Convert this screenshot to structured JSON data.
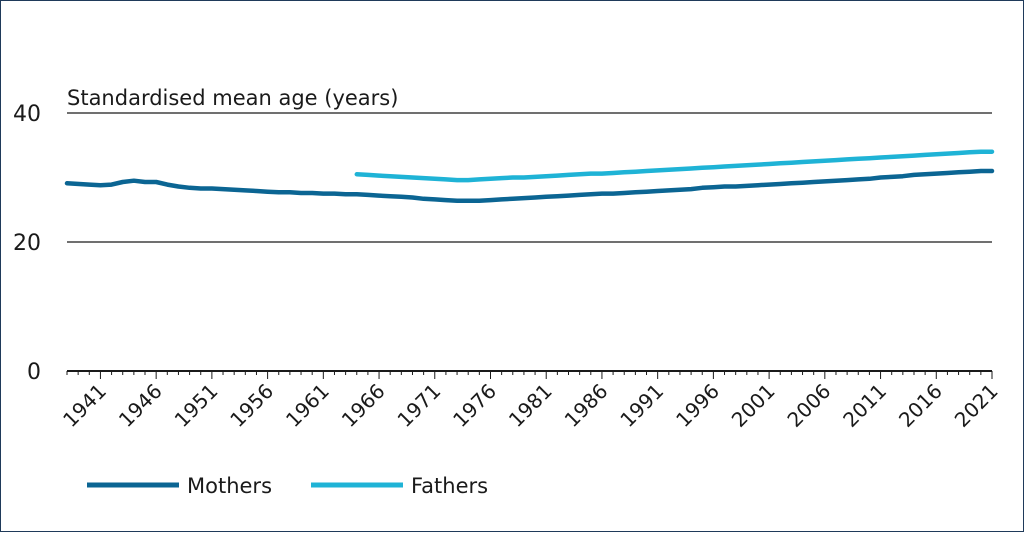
{
  "chart_data": {
    "type": "line",
    "title": "",
    "ylabel": "Standardised mean age (years)",
    "xlabel": "",
    "ylim": [
      0,
      40
    ],
    "xlim": [
      1938,
      2021
    ],
    "yticks": [
      0,
      20,
      40
    ],
    "xticks": [
      1941,
      1946,
      1951,
      1956,
      1961,
      1966,
      1971,
      1976,
      1981,
      1986,
      1991,
      1996,
      2001,
      2006,
      2011,
      2016,
      2021
    ],
    "grid": "horizontal at y ticks",
    "legend": "bottom-left",
    "series": [
      {
        "name": "Mothers",
        "color": "#0b6593",
        "x": [
          1938,
          1940,
          1941,
          1942,
          1943,
          1944,
          1945,
          1946,
          1947,
          1948,
          1949,
          1950,
          1951,
          1952,
          1953,
          1954,
          1955,
          1956,
          1957,
          1958,
          1959,
          1960,
          1961,
          1962,
          1963,
          1964,
          1965,
          1966,
          1967,
          1968,
          1969,
          1970,
          1971,
          1972,
          1973,
          1974,
          1975,
          1976,
          1977,
          1978,
          1979,
          1980,
          1981,
          1982,
          1983,
          1984,
          1985,
          1986,
          1987,
          1988,
          1989,
          1990,
          1991,
          1992,
          1993,
          1994,
          1995,
          1996,
          1997,
          1998,
          1999,
          2000,
          2001,
          2002,
          2003,
          2004,
          2005,
          2006,
          2007,
          2008,
          2009,
          2010,
          2011,
          2012,
          2013,
          2014,
          2015,
          2016,
          2017,
          2018,
          2019,
          2020,
          2021
        ],
        "y": [
          29.1,
          28.9,
          28.8,
          28.9,
          29.3,
          29.5,
          29.3,
          29.3,
          28.9,
          28.6,
          28.4,
          28.3,
          28.3,
          28.2,
          28.1,
          28.0,
          27.9,
          27.8,
          27.7,
          27.7,
          27.6,
          27.6,
          27.5,
          27.5,
          27.4,
          27.4,
          27.3,
          27.2,
          27.1,
          27.0,
          26.9,
          26.7,
          26.6,
          26.5,
          26.4,
          26.4,
          26.4,
          26.5,
          26.6,
          26.7,
          26.8,
          26.9,
          27.0,
          27.1,
          27.2,
          27.3,
          27.4,
          27.5,
          27.5,
          27.6,
          27.7,
          27.8,
          27.9,
          28.0,
          28.1,
          28.2,
          28.4,
          28.5,
          28.6,
          28.6,
          28.7,
          28.8,
          28.9,
          29.0,
          29.1,
          29.2,
          29.3,
          29.4,
          29.5,
          29.6,
          29.7,
          29.8,
          30.0,
          30.1,
          30.2,
          30.4,
          30.5,
          30.6,
          30.7,
          30.8,
          30.9,
          31.0,
          31.0
        ]
      },
      {
        "name": "Fathers",
        "color": "#1fb3d6",
        "x": [
          1964,
          1965,
          1966,
          1967,
          1968,
          1969,
          1970,
          1971,
          1972,
          1973,
          1974,
          1975,
          1976,
          1977,
          1978,
          1979,
          1980,
          1981,
          1982,
          1983,
          1984,
          1985,
          1986,
          1987,
          1988,
          1989,
          1990,
          1991,
          1992,
          1993,
          1994,
          1995,
          1996,
          1997,
          1998,
          1999,
          2000,
          2001,
          2002,
          2003,
          2004,
          2005,
          2006,
          2007,
          2008,
          2009,
          2010,
          2011,
          2012,
          2013,
          2014,
          2015,
          2016,
          2017,
          2018,
          2019,
          2020,
          2021
        ],
        "y": [
          30.5,
          30.4,
          30.3,
          30.2,
          30.1,
          30.0,
          29.9,
          29.8,
          29.7,
          29.6,
          29.6,
          29.7,
          29.8,
          29.9,
          30.0,
          30.0,
          30.1,
          30.2,
          30.3,
          30.4,
          30.5,
          30.6,
          30.6,
          30.7,
          30.8,
          30.9,
          31.0,
          31.1,
          31.2,
          31.3,
          31.4,
          31.5,
          31.6,
          31.7,
          31.8,
          31.9,
          32.0,
          32.1,
          32.2,
          32.3,
          32.4,
          32.5,
          32.6,
          32.7,
          32.8,
          32.9,
          33.0,
          33.1,
          33.2,
          33.3,
          33.4,
          33.5,
          33.6,
          33.7,
          33.8,
          33.9,
          34.0,
          34.0
        ]
      }
    ]
  }
}
